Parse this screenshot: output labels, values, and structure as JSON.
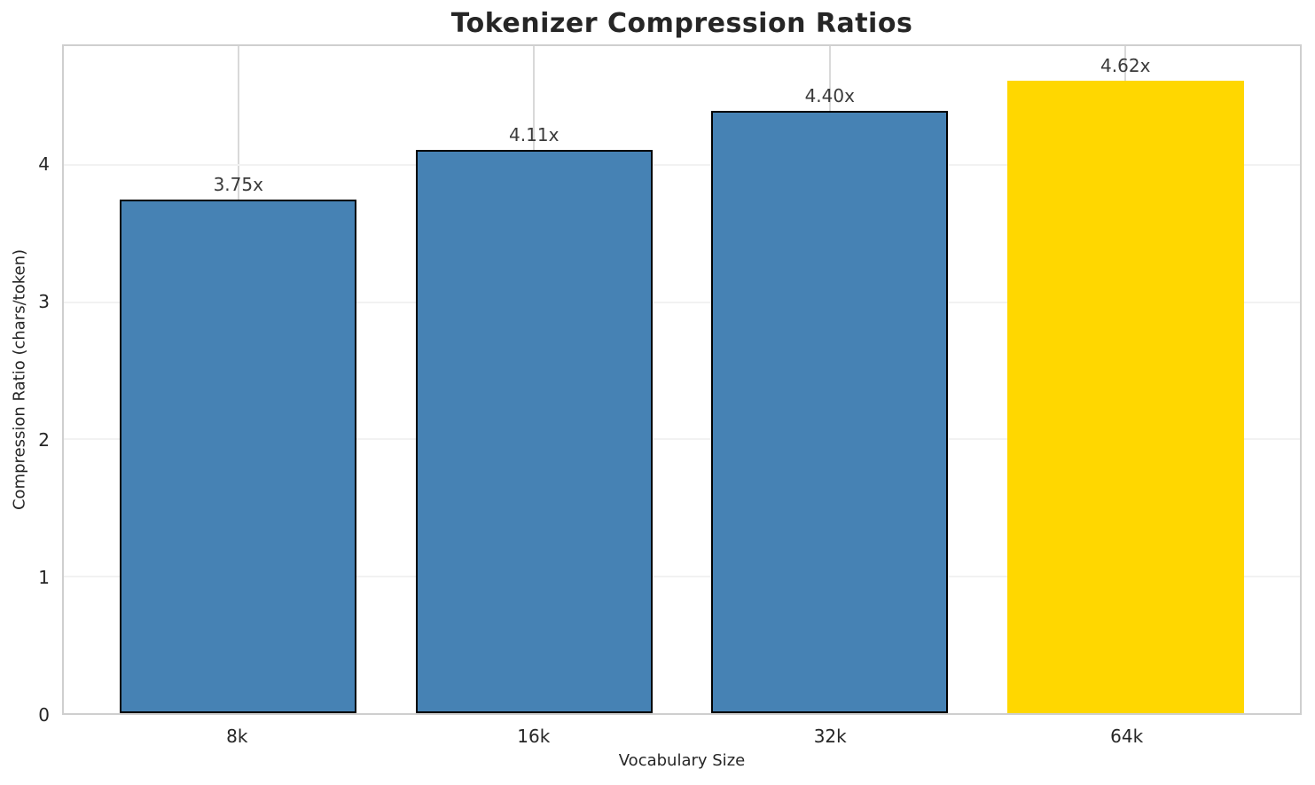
{
  "chart_data": {
    "type": "bar",
    "title": "Tokenizer Compression Ratios",
    "xlabel": "Vocabulary Size",
    "ylabel": "Compression Ratio (chars/token)",
    "categories": [
      "8k",
      "16k",
      "32k",
      "64k"
    ],
    "values": [
      3.75,
      4.11,
      4.4,
      4.62
    ],
    "value_labels": [
      "3.75x",
      "4.11x",
      "4.40x",
      "4.62x"
    ],
    "yticks": [
      0,
      1,
      2,
      3,
      4
    ],
    "ylim": [
      0,
      4.87
    ],
    "bar_width_fraction": 0.8,
    "grid": "both",
    "legend": "none",
    "bar_colors": [
      "#4682B4",
      "#4682B4",
      "#4682B4",
      "#FFD700"
    ],
    "bar_edge_colors": [
      "#000000",
      "#000000",
      "#000000",
      "none"
    ]
  },
  "colors": {
    "bar_blue": "#4682B4",
    "bar_highlight_gold": "#FFD700",
    "bar_edge": "#000000",
    "spine": "#cfcfcf",
    "grid_vertical": "#d9d9d9",
    "grid_horizontal": "#f2f2f2",
    "text": "#262626"
  }
}
